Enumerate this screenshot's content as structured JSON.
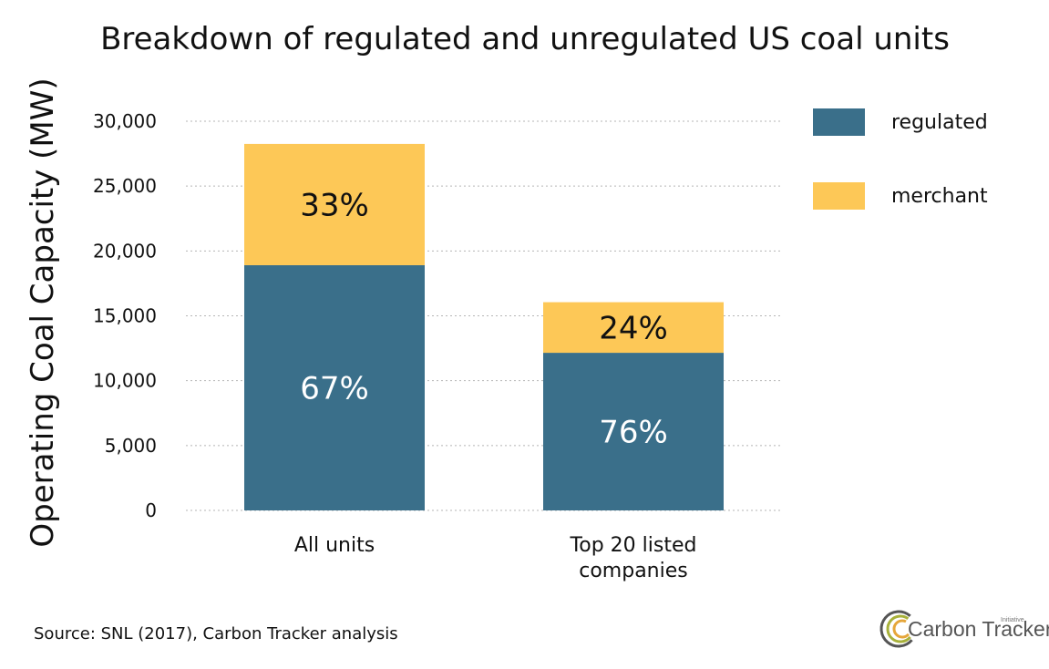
{
  "chart_data": {
    "type": "bar",
    "stacked": true,
    "title": "Breakdown of regulated and unregulated US coal units",
    "xlabel": "",
    "ylabel": "Operating Coal Capacity (MW)",
    "ylim": [
      0,
      30000
    ],
    "yticks": [
      "0",
      "5,000",
      "10,000",
      "15,000",
      "20,000",
      "25,000",
      "30,000"
    ],
    "ytick_values": [
      0,
      5000,
      10000,
      15000,
      20000,
      25000,
      30000
    ],
    "grid": "horizontal dotted",
    "legend_position": "right",
    "categories": [
      "All units",
      "Top 20 listed companies"
    ],
    "category_lines": [
      [
        "All units"
      ],
      [
        "Top 20 listed",
        "companies"
      ]
    ],
    "series": [
      {
        "name": "regulated",
        "color": "#3a6f8a",
        "values": [
          18900,
          12150
        ],
        "labels": [
          "67%",
          "76%"
        ]
      },
      {
        "name": "merchant",
        "color": "#fdc857",
        "values": [
          9350,
          3900
        ],
        "labels": [
          "33%",
          "24%"
        ]
      }
    ]
  },
  "footer": {
    "source": "Source: SNL (2017), Carbon Tracker analysis"
  },
  "logo": {
    "name": "Carbon Tracker",
    "tag": "Initiative",
    "colors": [
      "#555555",
      "#a8b13a",
      "#e6a63a"
    ]
  }
}
